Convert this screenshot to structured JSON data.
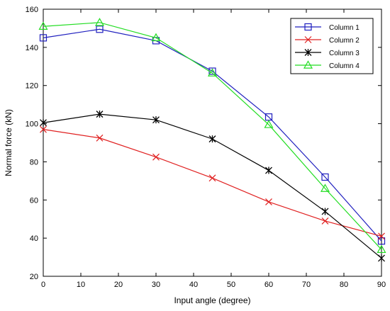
{
  "chart_data": {
    "type": "line",
    "xlabel": "Input angle (degree)",
    "ylabel": "Normal force (kN)",
    "xlim": [
      0,
      90
    ],
    "ylim": [
      20,
      160
    ],
    "xticks": [
      0,
      10,
      20,
      30,
      40,
      50,
      60,
      70,
      80,
      90
    ],
    "yticks": [
      20,
      40,
      60,
      80,
      100,
      120,
      140,
      160
    ],
    "grid": false,
    "legend_position": "top-right",
    "x": [
      0,
      15,
      30,
      45,
      60,
      75,
      90
    ],
    "series": [
      {
        "name": "Column 1",
        "color": "#1f1fbf",
        "marker": "square",
        "values": [
          145,
          149.5,
          143.5,
          127.5,
          103.5,
          72,
          38.5
        ]
      },
      {
        "name": "Column 2",
        "color": "#e02020",
        "marker": "x",
        "values": [
          97,
          92.5,
          82.5,
          71.5,
          59,
          49,
          41
        ]
      },
      {
        "name": "Column 3",
        "color": "#000000",
        "marker": "asterisk",
        "values": [
          100.5,
          105,
          102,
          92,
          75.5,
          54,
          29.5
        ]
      },
      {
        "name": "Column 4",
        "color": "#22dd22",
        "marker": "triangle",
        "values": [
          151,
          153,
          145,
          126.5,
          99.5,
          66,
          34
        ]
      }
    ]
  }
}
